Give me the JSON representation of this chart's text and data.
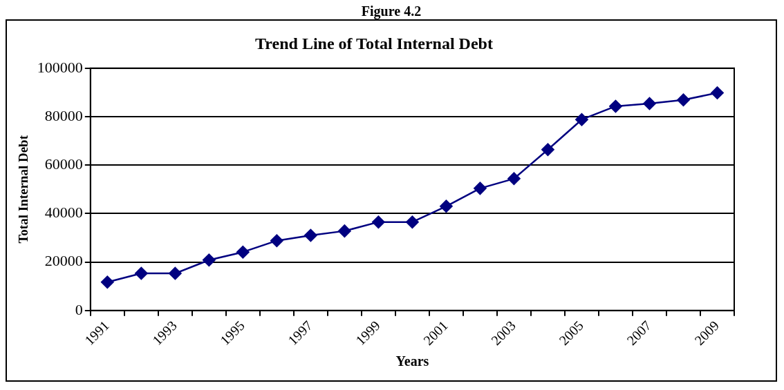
{
  "chart_data": {
    "type": "line",
    "title": "Trend Line of Total Internal Debt",
    "xlabel": "Years",
    "ylabel": "Total Internal Debt",
    "annotations": [
      "Figure 4.2"
    ],
    "categories": [
      "1991",
      null,
      "1993",
      null,
      "1995",
      null,
      "1997",
      null,
      "1999",
      null,
      "2001",
      null,
      "2003",
      null,
      "2005",
      null,
      "2007",
      null,
      "2009"
    ],
    "series": [
      {
        "color": "#000080",
        "values": [
          11700,
          15300,
          15300,
          20800,
          24100,
          28800,
          31000,
          32800,
          36500,
          36500,
          43000,
          50400,
          54400,
          66400,
          78800,
          84300,
          85400,
          86900,
          89800
        ]
      }
    ],
    "ylim": [
      0,
      100000
    ],
    "yticks": [
      0,
      20000,
      40000,
      60000,
      80000,
      100000
    ],
    "grid": "y",
    "legend": false,
    "marker": "diamond",
    "line_style": "solid"
  }
}
